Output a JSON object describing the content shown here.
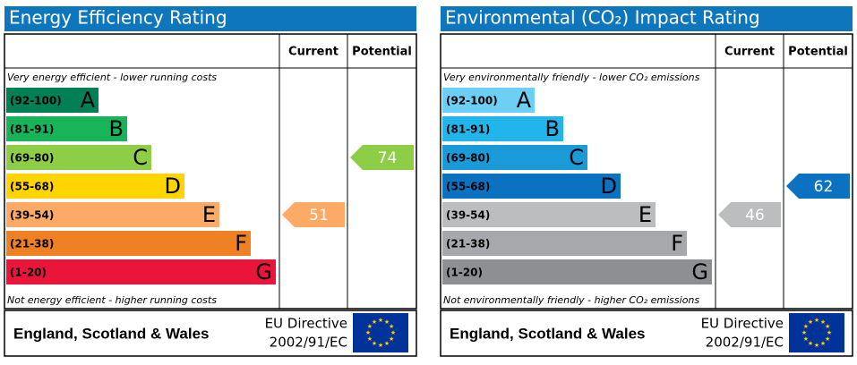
{
  "chart_data": [
    {
      "type": "epc",
      "title": "Energy Efficiency Rating",
      "columns": [
        "Current",
        "Potential"
      ],
      "top_note": "Very energy efficient - lower running costs",
      "bottom_note": "Not energy efficient - higher running costs",
      "bands": [
        {
          "range": "(92-100)",
          "letter": "A",
          "color": "#008054"
        },
        {
          "range": "(81-91)",
          "letter": "B",
          "color": "#19b459"
        },
        {
          "range": "(69-80)",
          "letter": "C",
          "color": "#8dce46"
        },
        {
          "range": "(55-68)",
          "letter": "D",
          "color": "#ffd500"
        },
        {
          "range": "(39-54)",
          "letter": "E",
          "color": "#fcaa65"
        },
        {
          "range": "(21-38)",
          "letter": "F",
          "color": "#ef8023"
        },
        {
          "range": "(1-20)",
          "letter": "G",
          "color": "#e9153b"
        }
      ],
      "values": [
        51,
        74
      ],
      "region": "England, Scotland & Wales",
      "directive": [
        "EU Directive",
        "2002/91/EC"
      ]
    },
    {
      "type": "epc",
      "title": "Environmental (CO₂) Impact Rating",
      "columns": [
        "Current",
        "Potential"
      ],
      "top_note": "Very environmentally friendly - lower CO₂ emissions",
      "bottom_note": "Not environmentally friendly - higher CO₂ emissions",
      "bands": [
        {
          "range": "(92-100)",
          "letter": "A",
          "color": "#6ccff6"
        },
        {
          "range": "(81-91)",
          "letter": "B",
          "color": "#22b5ea"
        },
        {
          "range": "(69-80)",
          "letter": "C",
          "color": "#1a9bd7"
        },
        {
          "range": "(55-68)",
          "letter": "D",
          "color": "#0a72c1"
        },
        {
          "range": "(39-54)",
          "letter": "E",
          "color": "#bbbdbf"
        },
        {
          "range": "(21-38)",
          "letter": "F",
          "color": "#a6a8ab"
        },
        {
          "range": "(1-20)",
          "letter": "G",
          "color": "#8d8f92"
        }
      ],
      "values": [
        46,
        62
      ],
      "region": "England, Scotland & Wales",
      "directive": [
        "EU Directive",
        "2002/91/EC"
      ]
    }
  ]
}
